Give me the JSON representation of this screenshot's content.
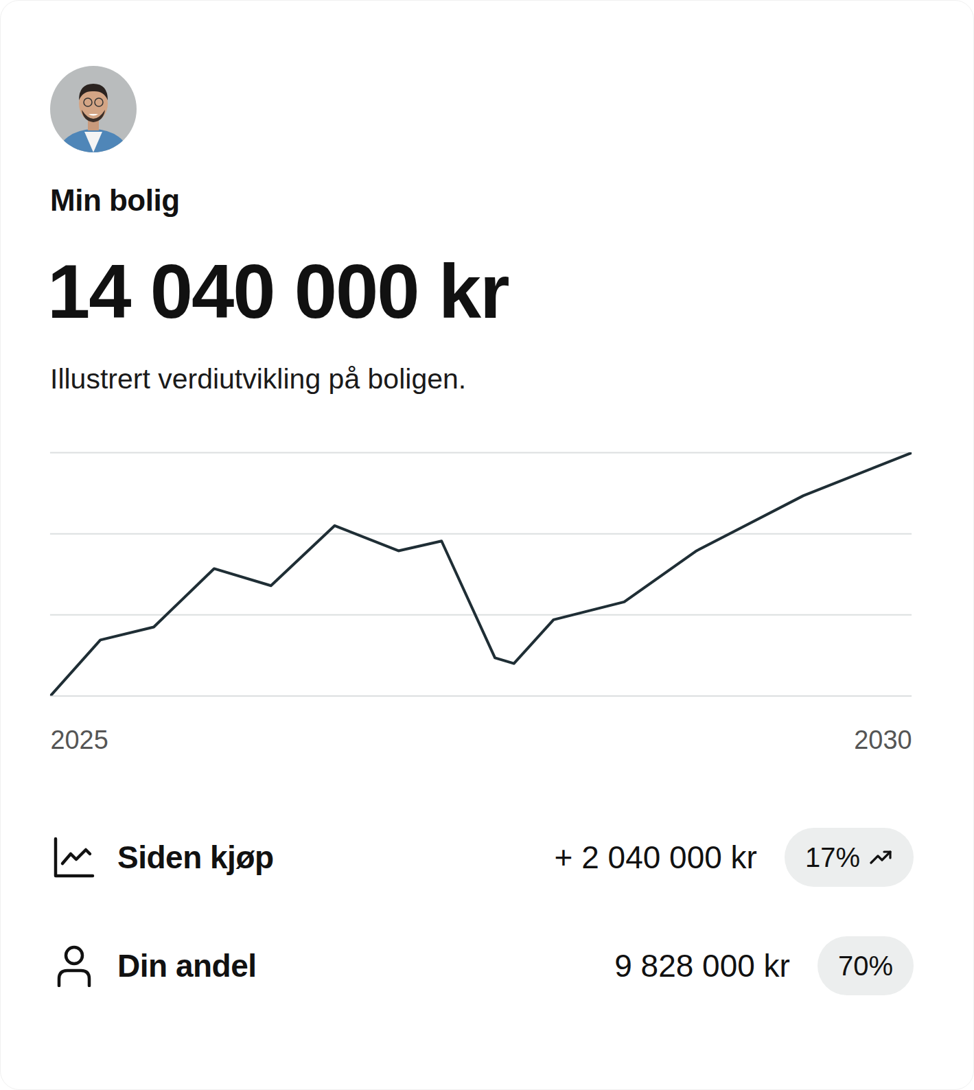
{
  "header": {
    "title": "Min bolig",
    "value": "14 040 000 kr",
    "subtitle": "Illustrert verdiutvikling på boligen."
  },
  "chart_data": {
    "type": "line",
    "x": [
      2025.0,
      2025.29,
      2025.6,
      2025.95,
      2026.28,
      2026.65,
      2027.02,
      2027.27,
      2027.58,
      2027.69,
      2027.92,
      2028.33,
      2028.75,
      2029.37,
      2030.0
    ],
    "values": [
      0.0,
      0.69,
      0.85,
      1.57,
      1.36,
      2.1,
      1.79,
      1.91,
      0.47,
      0.4,
      0.94,
      1.16,
      1.79,
      2.47,
      3.0
    ],
    "color": "#1f2e35",
    "xlim": [
      2025,
      2030
    ],
    "xticks": [
      2025,
      2030
    ],
    "ylim": [
      0,
      3
    ],
    "yticks": [
      0,
      1,
      2,
      3
    ],
    "grid": true,
    "tick_labels": "x"
  },
  "stats": [
    {
      "label": "Siden kjøp",
      "value": "+ 2 040 000 kr",
      "badge": "17%"
    },
    {
      "label": "Din andel",
      "value": "9 828 000 kr",
      "badge": "70%"
    }
  ]
}
